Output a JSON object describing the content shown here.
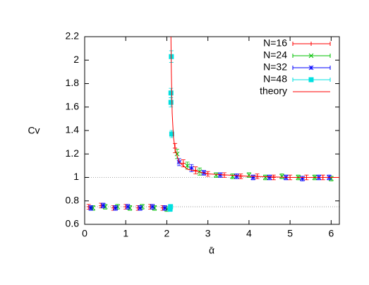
{
  "chart_data": {
    "type": "scatter",
    "x_label": "ᾱ",
    "y_label": "Cv",
    "xlim": [
      0,
      6.2
    ],
    "ylim": [
      0.6,
      2.2
    ],
    "xticks": [
      0,
      1,
      2,
      3,
      4,
      5,
      6
    ],
    "yticks": [
      0.6,
      0.8,
      1,
      1.2,
      1.4,
      1.6,
      1.8,
      2,
      2.2
    ],
    "hlines": [
      0.75,
      1
    ],
    "legend": "top-right",
    "series": [
      {
        "name": "N=16",
        "color": "#ff0000",
        "marker": "plus",
        "x": [
          0.1,
          0.4,
          0.7,
          1.0,
          1.3,
          1.6,
          1.9,
          2.2,
          2.4,
          2.7,
          3.0,
          3.4,
          3.8,
          4.2,
          4.6,
          5.0,
          5.4,
          5.8
        ],
        "values": [
          0.75,
          0.76,
          0.74,
          0.75,
          0.74,
          0.75,
          0.74,
          1.25,
          1.12,
          1.06,
          1.03,
          1.02,
          1.01,
          1.01,
          1.0,
          1.0,
          1.0,
          1.0
        ],
        "errors": [
          0.02,
          0.02,
          0.02,
          0.02,
          0.02,
          0.02,
          0.02,
          0.04,
          0.03,
          0.03,
          0.02,
          0.02,
          0.02,
          0.02,
          0.02,
          0.02,
          0.02,
          0.02
        ]
      },
      {
        "name": "N=24",
        "color": "#00c000",
        "marker": "cross",
        "x": [
          0.2,
          0.5,
          0.8,
          1.1,
          1.4,
          1.7,
          2.0,
          2.25,
          2.5,
          2.8,
          3.2,
          3.6,
          4.0,
          4.4,
          4.8,
          5.2,
          5.6,
          6.0
        ],
        "values": [
          0.74,
          0.75,
          0.75,
          0.74,
          0.75,
          0.74,
          0.73,
          1.2,
          1.1,
          1.05,
          1.02,
          1.01,
          1.02,
          1.0,
          1.01,
          1.0,
          1.0,
          0.99
        ],
        "errors": [
          0.02,
          0.02,
          0.02,
          0.02,
          0.02,
          0.02,
          0.02,
          0.04,
          0.03,
          0.03,
          0.02,
          0.02,
          0.02,
          0.02,
          0.02,
          0.02,
          0.02,
          0.02
        ]
      },
      {
        "name": "N=32",
        "color": "#0000ff",
        "marker": "star",
        "x": [
          0.15,
          0.45,
          0.75,
          1.05,
          1.35,
          1.65,
          1.95,
          2.3,
          2.6,
          2.9,
          3.3,
          3.7,
          4.1,
          4.5,
          4.9,
          5.3,
          5.7,
          5.95
        ],
        "values": [
          0.74,
          0.76,
          0.74,
          0.75,
          0.74,
          0.75,
          0.74,
          1.13,
          1.08,
          1.04,
          1.02,
          1.01,
          1.0,
          1.0,
          1.0,
          0.99,
          1.0,
          1.0
        ],
        "errors": [
          0.02,
          0.02,
          0.02,
          0.02,
          0.02,
          0.02,
          0.02,
          0.03,
          0.03,
          0.02,
          0.02,
          0.02,
          0.02,
          0.02,
          0.02,
          0.02,
          0.02,
          0.02
        ]
      },
      {
        "name": "N=48",
        "color": "#00e0e0",
        "marker": "square",
        "x": [
          2.08,
          2.09,
          2.1,
          2.1,
          2.11,
          2.12
        ],
        "values": [
          0.73,
          0.75,
          1.64,
          1.72,
          2.03,
          1.37
        ],
        "errors": [
          0.02,
          0.02,
          0.04,
          0.04,
          0.05,
          0.03
        ]
      },
      {
        "name": "theory",
        "color": "#ff0000",
        "marker": "line",
        "x": [
          2.1,
          2.11,
          2.13,
          2.16,
          2.2,
          2.3,
          2.5,
          3,
          4,
          5,
          6.2
        ],
        "values": [
          2.2,
          1.9,
          1.55,
          1.35,
          1.24,
          1.13,
          1.07,
          1.03,
          1.01,
          1.0,
          1.0
        ]
      }
    ]
  }
}
